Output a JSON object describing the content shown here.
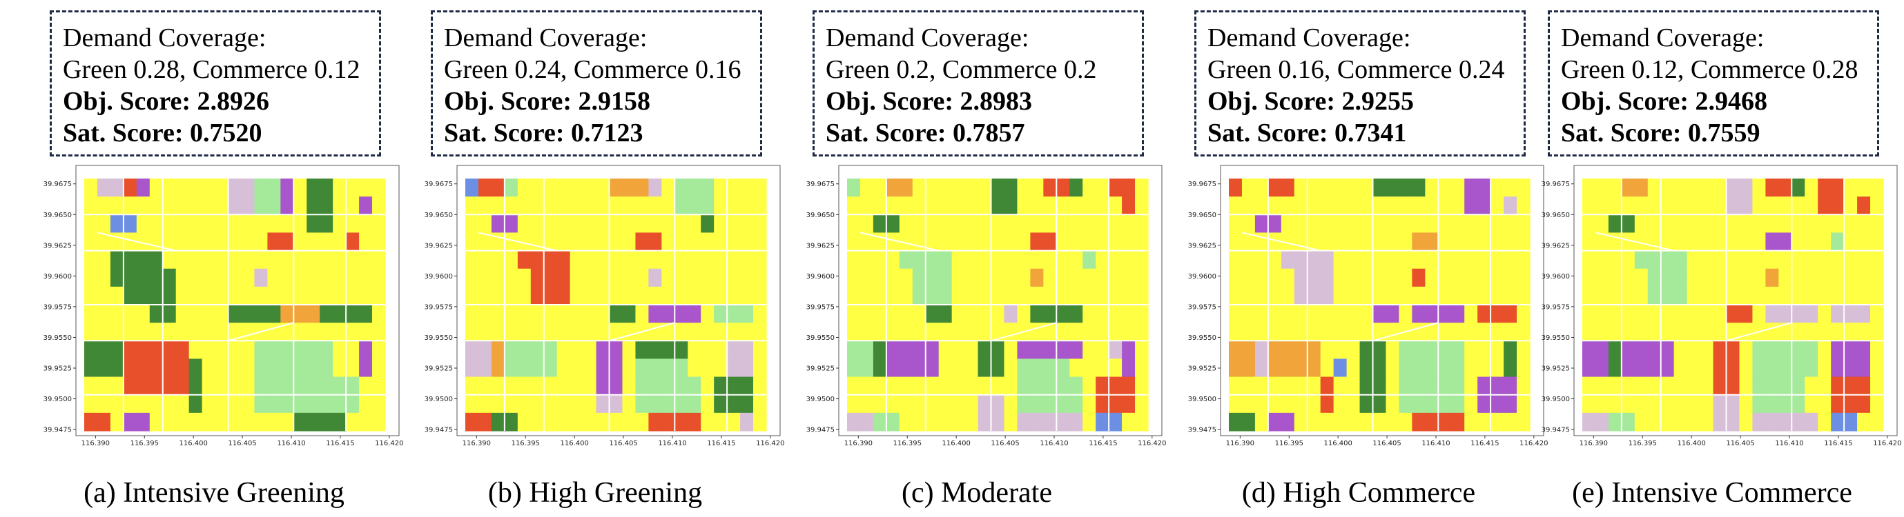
{
  "figure": {
    "panels": [
      {
        "caption": "(a) Intensive Greening",
        "coverage_title": "Demand Coverage:",
        "coverage_detail": "Green 0.28, Commerce 0.12",
        "obj_score": "Obj. Score: 2.8926",
        "sat_score": "Sat. Score: 0.7520"
      },
      {
        "caption": "(b) High Greening",
        "coverage_title": "Demand Coverage:",
        "coverage_detail": "Green 0.24, Commerce 0.16",
        "obj_score": "Obj. Score: 2.9158",
        "sat_score": "Sat. Score: 0.7123"
      },
      {
        "caption": "(c) Moderate",
        "coverage_title": "Demand Coverage:",
        "coverage_detail": "Green 0.2, Commerce 0.2",
        "obj_score": "Obj. Score: 2.8983",
        "sat_score": "Sat. Score: 0.7857"
      },
      {
        "caption": "(d) High Commerce",
        "coverage_title": "Demand Coverage:",
        "coverage_detail": "Green 0.16, Commerce 0.24",
        "obj_score": "Obj. Score: 2.9255",
        "sat_score": "Sat. Score: 0.7341"
      },
      {
        "caption": "(e) Intensive Commerce",
        "coverage_title": "Demand Coverage:",
        "coverage_detail": "Green 0.12, Commerce 0.28",
        "obj_score": "Obj. Score: 2.9468",
        "sat_score": "Sat. Score: 0.7559"
      }
    ]
  },
  "chart_data": {
    "type": "map",
    "xlim": [
      116.388,
      116.421
    ],
    "ylim": [
      39.947,
      39.969
    ],
    "x_ticks": [
      "116.390",
      "116.395",
      "116.400",
      "116.405",
      "116.410",
      "116.415",
      "116.420"
    ],
    "y_ticks": [
      "39.9475",
      "39.9500",
      "39.9525",
      "39.9550",
      "39.9575",
      "39.9600",
      "39.9625",
      "39.9650",
      "39.9675"
    ],
    "grid": false,
    "colors": {
      "Y": "#ffff44",
      "G": "#408835",
      "L": "#a5e99b",
      "R": "#e8502b",
      "P": "#a955cc",
      "K": "#d7bfd8",
      "O": "#f0a43a",
      "B": "#6c8fe4"
    },
    "parcel_maps": [
      [
        "YKKRPYYYYYYKKLLPYGGYYYY",
        "YYYYYYYYYYYKKLLPYGGYYPY",
        "YYBBYYYYYYYYYYYYYGGYYYY",
        "YYYYYYYYYYYYYYRRYYYYRYY",
        "YYGGGGYYYYYYYYYYYYYYYYY",
        "YYGGGGGYYYYYYKYYYYYYYYY",
        "YYYGGGGYYYYYYYYYYYYYYYY",
        "YYYYYGGYYYYGGGGOOOGGGGY",
        "YYYYYYYYYYYYYYYYYYYYYYY",
        "GGGRRRRRYYYYYLLLLLLYYPY",
        "GGGRRRRRGYYYYLLLLLLYYPY",
        "YYYRRRRRGYYYYLLLLLLLLYY",
        "YYYYYYYYGYYYYLLLLLLLLYY",
        "RRYPPYYYYYYYYYYYGGGGYYY"
      ],
      [
        "BRRLYYYYYYYOOOKYLLLYYYY",
        "YYYYYYYYYYYYYYYYLLLYYYY",
        "YYPPYYYYYYYYYYYYYYGYYYY",
        "YYYYYYYYYYYYYRRYYYYYYYY",
        "YYYYRRRRYYYYYYYYYYYYYYY",
        "YYYYYRRRYYYYYYKYYYYYYYY",
        "YYYYYRRRYYYYYYYYYYYYYYY",
        "YYYYYYYYYYYGGYPPPPYLLLY",
        "YYYYYYYYYYYYYYYYYYYYYYY",
        "KKOLLLLYYYPPYGGGGYYYKKY",
        "KKOLLLLYYYPPYLLLLYYYKKY",
        "YYYYYYYYYYPPYLLLLLYGGGY",
        "YYYYYYYYYYKKYLLLLLYGGGY",
        "RRGGYYYYYYYYYYRRRRYYYKY"
      ],
      [
        "LYYOOYYYYYYGGYYRRGYYRRY",
        "YYYYYYYYYYYGGYYYYYYYYRY",
        "YYGGYYYYYYYYYYYYYYYYYYY",
        "YYYYYYYYYYYYYYRRYYYYYYY",
        "YYYYLLLLYYYYYYYYYYLYYYY",
        "YYYYYLLLYYYYYYOYYYYYYYY",
        "YYYYYLLLYYYYYYYYYYYYYYY",
        "YYYYYYGGYYYYKYGGGGYYYYY",
        "YYYYYYYYYYYYYYYYYYYYYYY",
        "LLGPPPPYYYGGYPPPPPYYKPY",
        "LLGPPPPYYYGGYLLLLYYYYPY",
        "YYYYYYYYYYYYYLLLLLYRRRY",
        "YYYYYYYYYYKKYLLLLLYRRRY",
        "KKLLYYYYYYKKYKKKKKYBBYY"
      ],
      [
        "RYYRRYYYYYYGGGGYYYPPYYY",
        "YYYYYYYYYYYYYYYYYYPPYKY",
        "YYPPYYYYYYYYYYYYYYYYYYY",
        "YYYYYYYYYYYYYYOOYYYYYYY",
        "YYYYKKKKYYYYYYYYYYYYYYY",
        "YYYYYKKKYYYYYYRYYYYYYYY",
        "YYYYYKKKYYYYYYYYYYYYYYY",
        "YYYYYYYYYYYPPYPPPPYRRRY",
        "YYYYYYYYYYYYYYYYYYYYYYY",
        "OOKOOOOYYYGGYLLLLLYYYGY",
        "OOKOOOOYBYGGYLLLLLYYYGY",
        "YYYYYYYRYYGGYLLLLLYPPPY",
        "YYYYYYYRYYGGYLLLLLYPPPY",
        "GGYPPYYYYYYYYYRRRRYYYYY"
      ],
      [
        "YYYOOYYYYYYKKYRRGYRRYYY",
        "YYYYYYYYYYYKKYYYYYRRYRY",
        "YYGGYYYYYYYYYYYYYYYYYYY",
        "YYYYYYYYYYYYYYPPYYYLYYY",
        "YYYYLLLLYYYYYYYYYYYYYYY",
        "YYYYYLLLYYYYYYOYYYYYYYY",
        "YYYYYLLLYYYYYYYYYYYYYYY",
        "YYYYYYYYYYYRRYKKKKYKKKY",
        "YYYYYYYYYYYYYYYYYYYYYYY",
        "PPGPPPPYYYRRYLLLLLYPPPY",
        "PPGPPPPYYYRRYLLLLLYPPPY",
        "YYYYYYYYYYRRYLLLLYYRRRY",
        "YYYYYYYYYYKKYLLLLYYRRRY",
        "KKLLYYYYYYKKYKKKKKYBBYY"
      ]
    ]
  }
}
